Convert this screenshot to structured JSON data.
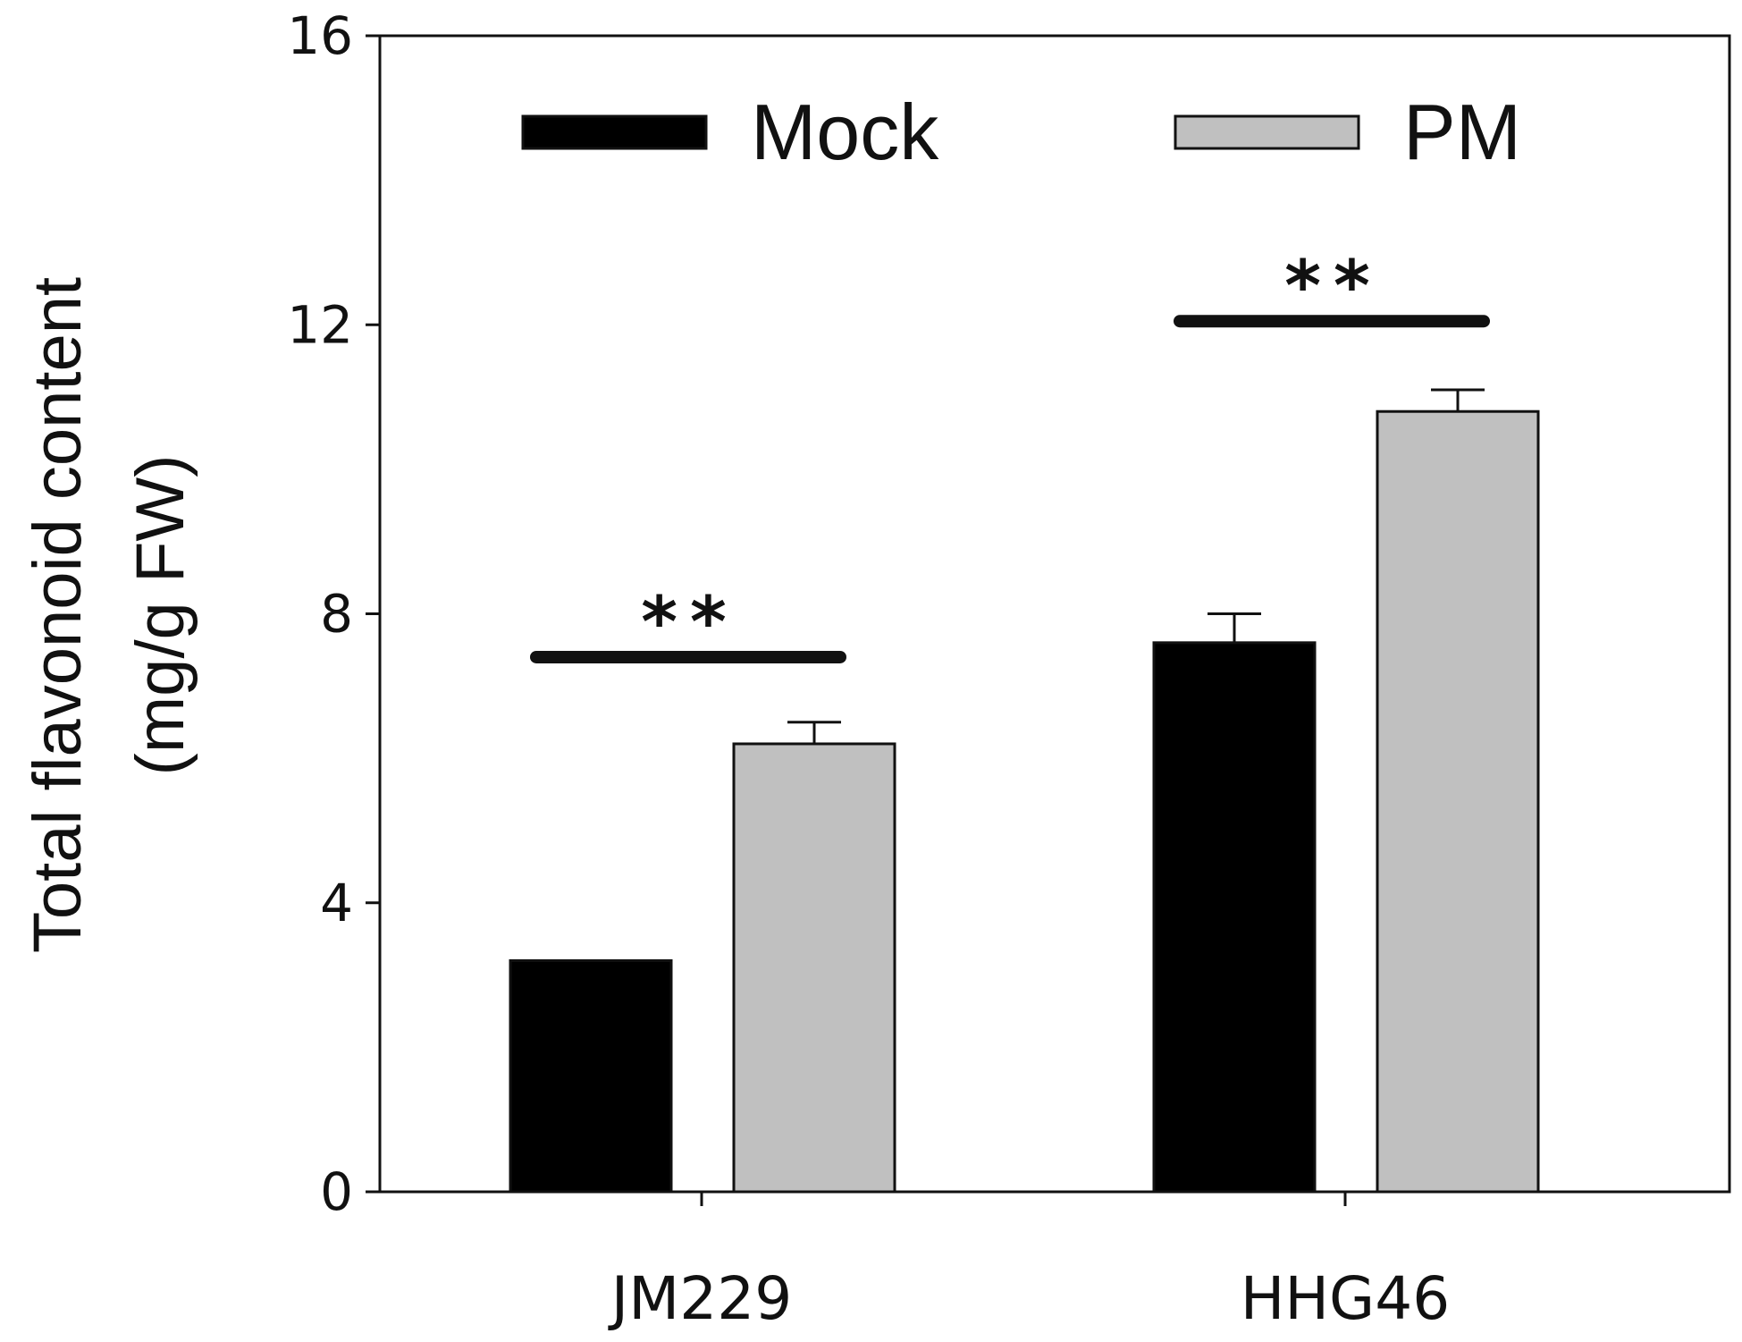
{
  "chart_data": {
    "type": "bar",
    "title": "",
    "xlabel": "",
    "ylabel_lines": [
      "Total flavonoid content",
      "(mg/g FW)"
    ],
    "ylim": [
      0,
      16
    ],
    "yticks": [
      0,
      4,
      8,
      12,
      16
    ],
    "categories": [
      "JM229",
      "HHG46"
    ],
    "series": [
      {
        "name": "Mock",
        "values": [
          3.2,
          7.6
        ],
        "errors": [
          0,
          0.4
        ],
        "color": "#000000"
      },
      {
        "name": "PM",
        "values": [
          6.2,
          10.8
        ],
        "errors": [
          0.3,
          0.3
        ],
        "color": "#c0c0c0"
      }
    ],
    "legend": {
      "position": "top"
    },
    "significance": [
      {
        "category": "JM229",
        "label": "**",
        "y": 7.4
      },
      {
        "category": "HHG46",
        "label": "**",
        "y": 12.05
      }
    ],
    "grid": false
  }
}
